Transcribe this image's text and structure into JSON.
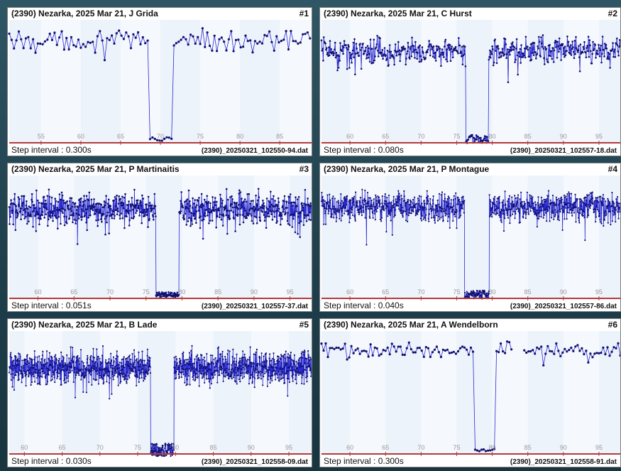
{
  "colors": {
    "plot_fill": "#edf3fb",
    "plot_fill_alt": "#f5f8fd",
    "line": "#2a2ad0",
    "marker": "#10106e",
    "axis": "#b33a3a",
    "tick_label": "#999999"
  },
  "panels": [
    {
      "title": "(2390) Nezarka,  2025 Mar 21,  J Grida",
      "number": "#1",
      "step": "Step interval : 0.300s",
      "file": "(2390)_20250321_102550-94.dat",
      "chart_data": {
        "type": "line",
        "xlim": [
          51,
          89
        ],
        "x_ticks": [
          55,
          60,
          65,
          70,
          75,
          80,
          85
        ],
        "dip": [
          68.6,
          71.4
        ],
        "step": 0.3,
        "noise": 0.07,
        "dip_noise": 0.015,
        "ylim": [
          0,
          1
        ],
        "base": 0.85,
        "gap": null
      }
    },
    {
      "title": "(2390) Nezarka,  2025 Mar 21,  C Hurst",
      "number": "#2",
      "step": "Step interval : 0.080s",
      "file": "(2390)_20250321_102557-18.dat",
      "chart_data": {
        "type": "line",
        "xlim": [
          56,
          98
        ],
        "x_ticks": [
          60,
          65,
          70,
          75,
          80,
          85,
          90,
          95
        ],
        "dip": [
          76.3,
          79.5
        ],
        "step": 0.08,
        "noise": 0.08,
        "dip_noise": 0.035,
        "ylim": [
          0,
          1
        ],
        "base": 0.76,
        "gap": null
      }
    },
    {
      "title": "(2390) Nezarka,  2025 Mar 21,  P Martinaitis",
      "number": "#3",
      "step": "Step interval : 0.051s",
      "file": "(2390)_20250321_102557-37.dat",
      "chart_data": {
        "type": "line",
        "xlim": [
          56,
          98
        ],
        "x_ticks": [
          60,
          65,
          70,
          75,
          80,
          85,
          90,
          95
        ],
        "dip": [
          76.4,
          79.6
        ],
        "step": 0.051,
        "noise": 0.1,
        "dip_noise": 0.02,
        "ylim": [
          0,
          1
        ],
        "base": 0.74,
        "gap": null
      }
    },
    {
      "title": "(2390) Nezarka,  2025 Mar 21,  P Montague",
      "number": "#4",
      "step": "Step interval : 0.040s",
      "file": "(2390)_20250321_102557-86.dat",
      "chart_data": {
        "type": "line",
        "xlim": [
          56,
          98
        ],
        "x_ticks": [
          60,
          65,
          70,
          75,
          80,
          85,
          90,
          95
        ],
        "dip": [
          76.1,
          79.6
        ],
        "step": 0.04,
        "noise": 0.09,
        "dip_noise": 0.035,
        "ylim": [
          0,
          1
        ],
        "base": 0.76,
        "gap": null
      }
    },
    {
      "title": "(2390) Nezarka,  2025 Mar 21,  B Lade",
      "number": "#5",
      "step": "Step interval : 0.030s",
      "file": "(2390)_20250321_102558-09.dat",
      "chart_data": {
        "type": "line",
        "xlim": [
          58,
          98
        ],
        "x_ticks": [
          60,
          65,
          70,
          75,
          80,
          85,
          90,
          95
        ],
        "dip": [
          76.7,
          79.8
        ],
        "step": 0.03,
        "noise": 0.1,
        "dip_noise": 0.06,
        "ylim": [
          0,
          1
        ],
        "base": 0.72,
        "gap": null
      }
    },
    {
      "title": "(2390) Nezarka,  2025 Mar 21,  A Wendelborn",
      "number": "#6",
      "step": "Step interval : 0.300s",
      "file": "(2390)_20250321_102558-91.dat",
      "chart_data": {
        "type": "line",
        "xlim": [
          56,
          98
        ],
        "x_ticks": [
          60,
          65,
          70,
          75,
          80,
          85,
          90,
          95
        ],
        "dip": [
          77.3,
          80.3
        ],
        "step": 0.3,
        "noise": 0.05,
        "dip_noise": 0.01,
        "ylim": [
          0,
          1
        ],
        "base": 0.86,
        "gap": [
          82.8,
          84.2
        ]
      }
    }
  ]
}
